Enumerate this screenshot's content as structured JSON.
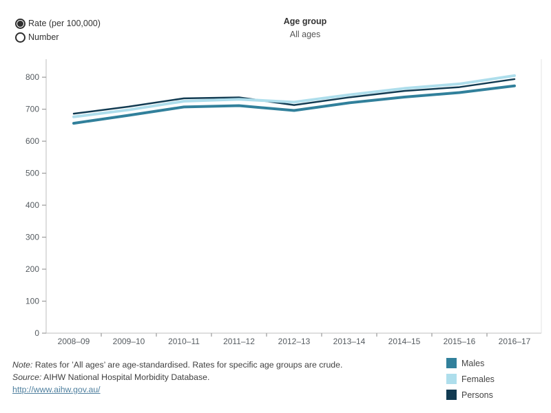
{
  "controls": {
    "metric_radios": [
      {
        "label": "Rate (per 100,000)",
        "selected": true
      },
      {
        "label": "Number",
        "selected": false
      }
    ]
  },
  "header": {
    "title": "Age group",
    "subtitle": "All ages"
  },
  "chart_data": {
    "type": "line",
    "title": "",
    "xlabel": "",
    "ylabel": "",
    "categories": [
      "2008–09",
      "2009–10",
      "2010–11",
      "2011–12",
      "2012–13",
      "2013–14",
      "2014–15",
      "2015–16",
      "2016–17"
    ],
    "series": [
      {
        "name": "Males",
        "color": "#31809B",
        "stroke_width": 4,
        "values": [
          656,
          681,
          707,
          711,
          696,
          720,
          738,
          752,
          773
        ]
      },
      {
        "name": "Persons",
        "color": "#123B52",
        "stroke_width": 2.5,
        "values": [
          686,
          708,
          734,
          737,
          713,
          737,
          757,
          769,
          794
        ]
      },
      {
        "name": "Females",
        "color": "#AEDEEC",
        "stroke_width": 4,
        "values": [
          676,
          698,
          725,
          731,
          722,
          745,
          765,
          779,
          805
        ]
      }
    ],
    "ylim": [
      0,
      800
    ],
    "ytick_step": 100,
    "grid": false,
    "legend_position": "bottom-right"
  },
  "legend": [
    {
      "label": "Males",
      "color": "#31809B"
    },
    {
      "label": "Females",
      "color": "#AEDEEC"
    },
    {
      "label": "Persons",
      "color": "#123B52"
    }
  ],
  "footnotes": {
    "note_label": "Note:",
    "note_text": " Rates for ’All ages’ are age-standardised. Rates for specific age groups are crude.",
    "source_label": "Source:",
    "source_text": " AIHW National Hospital Morbidity Database.",
    "link": "http://www.aihw.gov.au/"
  },
  "colors": {
    "axis_line": "#c9c9c9",
    "tick_mark": "#9a9a9a",
    "right_border": "#e3e3e3",
    "tick_label": "#555b60"
  }
}
